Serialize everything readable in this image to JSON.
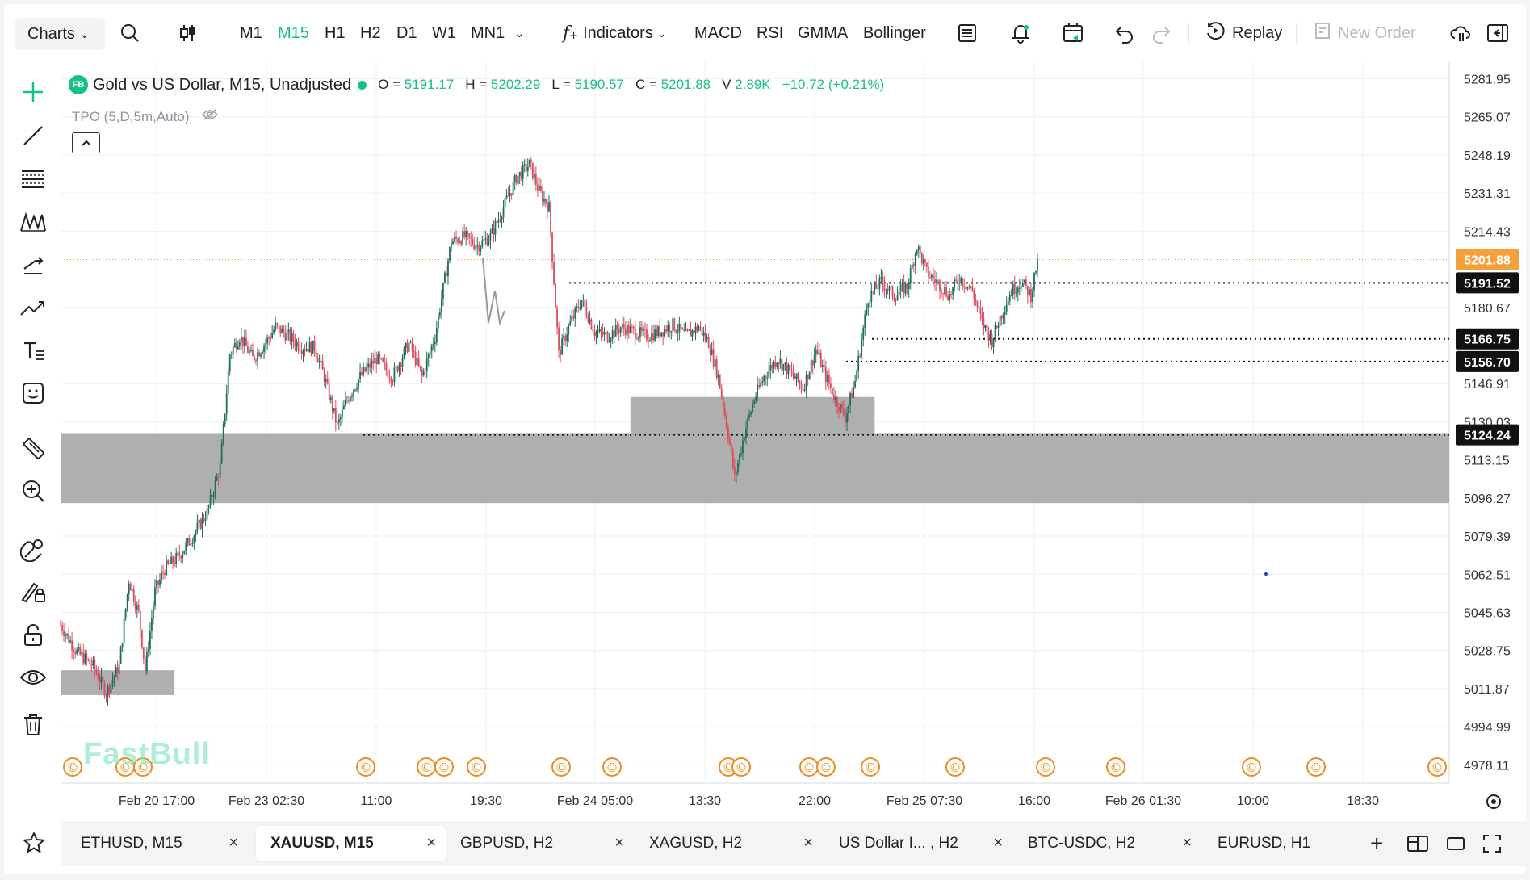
{
  "toolbar": {
    "charts_label": "Charts",
    "timeframes": [
      "M1",
      "M15",
      "H1",
      "H2",
      "D1",
      "W1",
      "MN1"
    ],
    "active_timeframe": "M15",
    "indicators_label": "Indicators",
    "quick_indicators": [
      "MACD",
      "RSI",
      "GMMA",
      "Bollinger"
    ],
    "replay_label": "Replay",
    "new_order_label": "New Order"
  },
  "legend": {
    "logo": "FB",
    "title": "Gold vs US Dollar, M15, Unadjusted",
    "o_label": "O =",
    "o_value": "5191.17",
    "h_label": "H =",
    "h_value": "5202.29",
    "l_label": "L =",
    "l_value": "5190.57",
    "c_label": "C =",
    "c_value": "5201.88",
    "v_label": "V",
    "v_value": "2.89K",
    "change": "+10.72 (+0.21%)",
    "tpo_label": "TPO (5,D,5m,Auto)"
  },
  "watermark": "FastBull",
  "colors": {
    "up": "#1e6e5a",
    "down": "#e04a5f",
    "accent": "#16c08a",
    "current_price_bg": "#f5a03a",
    "zone": "#ababab",
    "event_icon": "#f08c1e"
  },
  "chart_data": {
    "type": "candlestick",
    "symbol": "XAUUSD",
    "timeframe": "M15",
    "ylim": [
      4970,
      5290
    ],
    "price_ticks": [
      "5281.95",
      "5265.07",
      "5248.19",
      "5231.31",
      "5214.43",
      "5180.67",
      "5146.91",
      "5130.03",
      "5113.15",
      "5096.27",
      "5079.39",
      "5062.51",
      "5045.63",
      "5028.75",
      "5011.87",
      "4994.99",
      "4978.11"
    ],
    "time_ticks": [
      "Feb 20 17:00",
      "Feb 23 02:30",
      "11:00",
      "19:30",
      "Feb 24 05:00",
      "13:30",
      "22:00",
      "Feb 25 07:30",
      "16:00",
      "Feb 26 01:30",
      "10:00",
      "18:30"
    ],
    "price_labels": [
      {
        "value": "5201.88",
        "style": "current"
      },
      {
        "value": "5191.52",
        "style": "level"
      },
      {
        "value": "5166.75",
        "style": "level"
      },
      {
        "value": "5156.70",
        "style": "level"
      },
      {
        "value": "5124.24",
        "style": "level"
      }
    ],
    "current_price": 5201.88,
    "level_lines": [
      5191.52,
      5166.75,
      5156.7,
      5124.24
    ],
    "zones": [
      {
        "from_index": 0,
        "to_index": 999,
        "low": 5094,
        "high": 5125
      },
      {
        "from_index": 350,
        "to_index": 500,
        "low": 5124,
        "high": 5141
      },
      {
        "from_index": 0,
        "to_index": 70,
        "low": 5009,
        "high": 5020
      }
    ],
    "path": [
      [
        0,
        5040
      ],
      [
        10,
        5028
      ],
      [
        20,
        5022
      ],
      [
        28,
        5010
      ],
      [
        36,
        5022
      ],
      [
        42,
        5060
      ],
      [
        48,
        5045
      ],
      [
        52,
        5020
      ],
      [
        58,
        5055
      ],
      [
        64,
        5065
      ],
      [
        72,
        5070
      ],
      [
        80,
        5078
      ],
      [
        90,
        5090
      ],
      [
        98,
        5110
      ],
      [
        104,
        5160
      ],
      [
        110,
        5168
      ],
      [
        118,
        5158
      ],
      [
        126,
        5165
      ],
      [
        132,
        5172
      ],
      [
        140,
        5168
      ],
      [
        148,
        5163
      ],
      [
        156,
        5163
      ],
      [
        162,
        5150
      ],
      [
        170,
        5128
      ],
      [
        176,
        5140
      ],
      [
        184,
        5150
      ],
      [
        194,
        5158
      ],
      [
        204,
        5150
      ],
      [
        214,
        5165
      ],
      [
        222,
        5150
      ],
      [
        230,
        5168
      ],
      [
        240,
        5210
      ],
      [
        248,
        5212
      ],
      [
        256,
        5208
      ],
      [
        264,
        5212
      ],
      [
        272,
        5225
      ],
      [
        280,
        5238
      ],
      [
        288,
        5244
      ],
      [
        294,
        5232
      ],
      [
        300,
        5225
      ],
      [
        306,
        5160
      ],
      [
        312,
        5172
      ],
      [
        320,
        5184
      ],
      [
        328,
        5170
      ],
      [
        336,
        5168
      ],
      [
        344,
        5172
      ],
      [
        352,
        5170
      ],
      [
        360,
        5168
      ],
      [
        368,
        5170
      ],
      [
        376,
        5173
      ],
      [
        384,
        5168
      ],
      [
        392,
        5172
      ],
      [
        398,
        5165
      ],
      [
        404,
        5150
      ],
      [
        410,
        5125
      ],
      [
        414,
        5105
      ],
      [
        420,
        5125
      ],
      [
        426,
        5140
      ],
      [
        432,
        5150
      ],
      [
        440,
        5158
      ],
      [
        448,
        5152
      ],
      [
        456,
        5145
      ],
      [
        464,
        5162
      ],
      [
        470,
        5150
      ],
      [
        476,
        5140
      ],
      [
        482,
        5132
      ],
      [
        488,
        5148
      ],
      [
        496,
        5185
      ],
      [
        504,
        5192
      ],
      [
        512,
        5186
      ],
      [
        520,
        5190
      ],
      [
        526,
        5208
      ],
      [
        532,
        5196
      ],
      [
        538,
        5192
      ],
      [
        546,
        5186
      ],
      [
        552,
        5194
      ],
      [
        560,
        5188
      ],
      [
        566,
        5174
      ],
      [
        572,
        5166
      ],
      [
        578,
        5178
      ],
      [
        584,
        5188
      ],
      [
        590,
        5192
      ],
      [
        596,
        5186
      ],
      [
        600,
        5202
      ]
    ],
    "event_markers": 22
  },
  "tabs": [
    {
      "label": "ETHUSD, M15",
      "active": false
    },
    {
      "label": "XAUUSD, M15",
      "active": true
    },
    {
      "label": "GBPUSD, H2",
      "active": false
    },
    {
      "label": "XAGUSD, H2",
      "active": false
    },
    {
      "label": "US Dollar I... , H2",
      "active": false
    },
    {
      "label": "BTC-USDC, H2",
      "active": false
    },
    {
      "label": "EURUSD, H1",
      "active": false
    }
  ],
  "icons": {
    "search": "search-icon",
    "chart_type": "candlestick-type-icon",
    "indicators": "function-icon",
    "template": "template-icon",
    "alert": "alert-bell-icon",
    "calendar": "calendar-icon",
    "undo": "undo-icon",
    "redo": "redo-icon",
    "replay": "replay-icon",
    "cloud": "cloud-sync-icon",
    "exit": "exit-fullscreen-icon"
  }
}
